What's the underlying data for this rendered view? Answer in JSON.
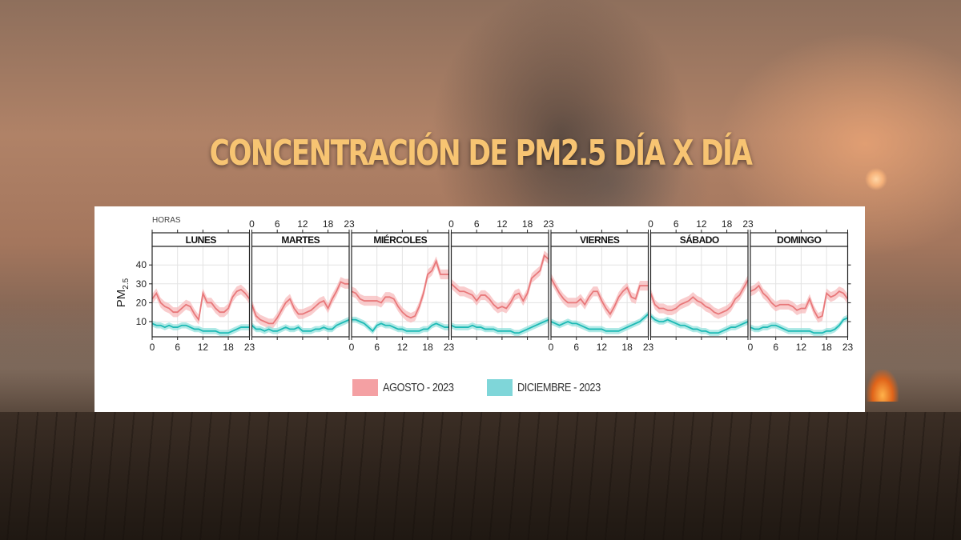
{
  "page": {
    "title": "CONCENTRACIÓN DE PM2.5 DÍA X DÍA"
  },
  "chart_data": {
    "type": "line",
    "title": "CONCENTRACIÓN DE PM2.5 DÍA X DÍA",
    "xlabel": "HORAS",
    "ylabel": "PM2.5",
    "ylim": [
      2,
      50
    ],
    "yticks": [
      10,
      20,
      30,
      40
    ],
    "xticks": [
      0,
      6,
      12,
      18,
      23
    ],
    "xlim": [
      0,
      23
    ],
    "grid": true,
    "legend_position": "bottom",
    "panels": [
      "LUNES",
      "MARTES",
      "MIÉRCOLES",
      "",
      "VIERNES",
      "SÁBADO",
      "DOMINGO"
    ],
    "x": [
      0,
      1,
      2,
      3,
      4,
      5,
      6,
      7,
      8,
      9,
      10,
      11,
      12,
      13,
      14,
      15,
      16,
      17,
      18,
      19,
      20,
      21,
      22,
      23
    ],
    "series": [
      {
        "name": "AGOSTO - 2023",
        "color": "#e8787a",
        "band_color": "#f6b7b8",
        "values": {
          "LUNES": [
            22,
            25,
            20,
            18,
            17,
            15,
            15,
            17,
            19,
            18,
            14,
            11,
            25,
            20,
            20,
            17,
            15,
            15,
            17,
            23,
            26,
            27,
            25,
            22
          ],
          "MARTES": [
            19,
            13,
            11,
            10,
            9,
            9,
            12,
            16,
            20,
            22,
            17,
            14,
            14,
            15,
            16,
            18,
            20,
            21,
            17,
            22,
            26,
            31,
            30,
            30
          ],
          "MIÉRCOLES": [
            26,
            25,
            22,
            21,
            21,
            21,
            21,
            20,
            23,
            23,
            22,
            18,
            15,
            13,
            12,
            13,
            18,
            25,
            35,
            37,
            42,
            35,
            35,
            35
          ],
          "JUEVES": [
            30,
            28,
            26,
            26,
            25,
            24,
            21,
            24,
            24,
            22,
            19,
            17,
            18,
            17,
            20,
            24,
            25,
            21,
            25,
            33,
            35,
            37,
            45,
            43
          ],
          "VIERNES": [
            33,
            29,
            25,
            22,
            20,
            20,
            20,
            22,
            19,
            23,
            26,
            26,
            21,
            17,
            14,
            18,
            23,
            26,
            28,
            23,
            22,
            29,
            29,
            29
          ],
          "SÁBADO": [
            25,
            19,
            17,
            17,
            16,
            16,
            17,
            19,
            20,
            21,
            23,
            21,
            20,
            18,
            17,
            15,
            14,
            15,
            16,
            18,
            22,
            24,
            28,
            32
          ],
          "DOMINGO": [
            26,
            27,
            29,
            25,
            23,
            20,
            18,
            19,
            19,
            19,
            18,
            16,
            17,
            17,
            22,
            16,
            12,
            13,
            25,
            23,
            24,
            26,
            25,
            22
          ]
        }
      },
      {
        "name": "DICIEMBRE - 2023",
        "color": "#1dbab5",
        "band_color": "#8edfdc",
        "values": {
          "LUNES": [
            9,
            8,
            8,
            7,
            8,
            7,
            7,
            8,
            8,
            7,
            6,
            6,
            5,
            5,
            5,
            5,
            4,
            4,
            4,
            5,
            6,
            7,
            7,
            7
          ],
          "MARTES": [
            8,
            6,
            6,
            5,
            6,
            5,
            5,
            6,
            7,
            6,
            6,
            7,
            5,
            5,
            5,
            6,
            6,
            7,
            6,
            6,
            8,
            9,
            10,
            11
          ],
          "MIÉRCOLES": [
            11,
            11,
            10,
            9,
            7,
            5,
            8,
            9,
            8,
            8,
            7,
            6,
            6,
            5,
            5,
            5,
            5,
            6,
            6,
            8,
            9,
            8,
            7,
            7
          ],
          "JUEVES": [
            8,
            7,
            7,
            7,
            7,
            8,
            7,
            7,
            6,
            6,
            6,
            5,
            5,
            5,
            5,
            4,
            4,
            5,
            6,
            7,
            8,
            9,
            10,
            11
          ],
          "VIERNES": [
            10,
            9,
            8,
            9,
            10,
            9,
            9,
            8,
            7,
            6,
            6,
            6,
            6,
            5,
            5,
            5,
            5,
            6,
            7,
            8,
            9,
            10,
            12,
            14
          ],
          "SÁBADO": [
            13,
            11,
            10,
            10,
            11,
            10,
            9,
            8,
            8,
            7,
            6,
            6,
            5,
            5,
            4,
            4,
            4,
            5,
            6,
            7,
            7,
            8,
            9,
            10
          ],
          "DOMINGO": [
            7,
            6,
            6,
            7,
            7,
            8,
            8,
            7,
            6,
            5,
            5,
            5,
            5,
            5,
            5,
            4,
            4,
            4,
            5,
            5,
            6,
            8,
            11,
            12
          ]
        }
      }
    ]
  },
  "chart": {
    "horas_label": "HORAS",
    "y_axis_label": "PM",
    "y_axis_sub": "2.5",
    "panel_labels": [
      "LUNES",
      "MARTES",
      "MIÉRCOLES",
      "",
      "VIERNES",
      "SÁBADO",
      "DOMINGO"
    ],
    "panel_keys": [
      "LUNES",
      "MARTES",
      "MIÉRCOLES",
      "JUEVES",
      "VIERNES",
      "SÁBADO",
      "DOMINGO"
    ]
  },
  "legend": {
    "items": [
      {
        "label": "AGOSTO - 2023",
        "color": "#f4a0a3"
      },
      {
        "label": "DICIEMBRE - 2023",
        "color": "#7fd6d9"
      }
    ]
  }
}
